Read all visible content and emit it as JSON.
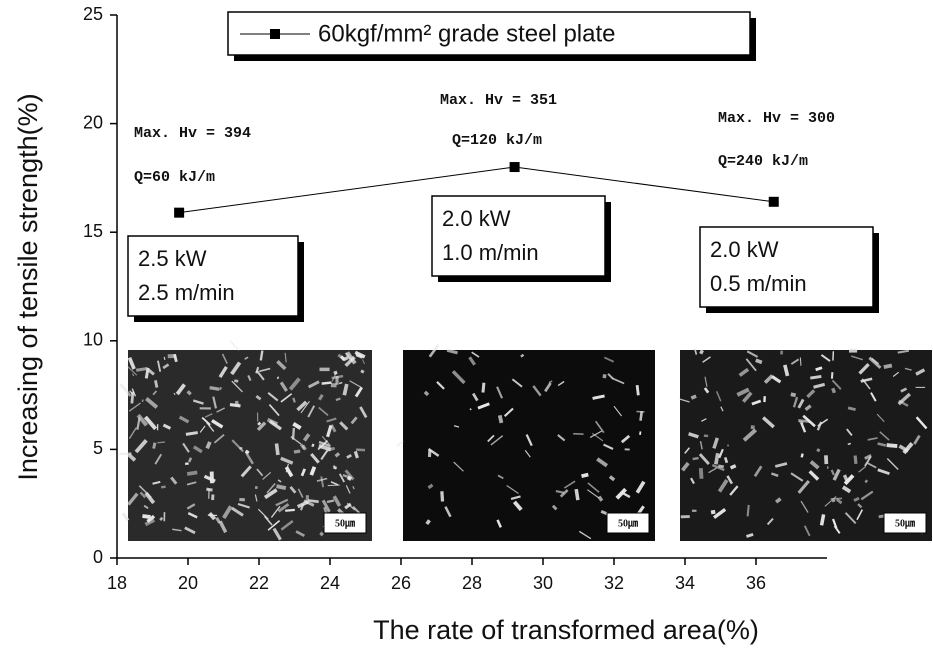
{
  "chart_data": {
    "type": "line",
    "xlabel": "The rate of transformed area(%)",
    "ylabel": "Increasing of tensile strength(%)",
    "x": [
      19.75,
      29.2,
      36.5
    ],
    "series": [
      {
        "name": "60kgf/mm² grade steel plate",
        "color": "#000000",
        "values": [
          15.9,
          18.0,
          16.4
        ]
      }
    ],
    "xlim": [
      18,
      38
    ],
    "xticks": [
      18,
      20,
      22,
      24,
      26,
      28,
      30,
      32,
      34,
      36
    ],
    "ylim": [
      0,
      25
    ],
    "yticks": [
      0,
      5,
      10,
      15,
      20,
      25
    ],
    "grid": false,
    "annotations": {
      "hardness": [
        "Max. Hv = 394",
        "Max. Hv = 351",
        "Max. Hv = 300"
      ],
      "heat_input": [
        "Q=60 kJ/m",
        "Q=120 kJ/m",
        "Q=240 kJ/m"
      ],
      "conditions": [
        [
          "2.5 kW",
          "2.5 m/min"
        ],
        [
          "2.0 kW",
          "1.0 m/min"
        ],
        [
          "2.0 kW",
          "0.5 m/min"
        ]
      ],
      "scale_bars": [
        "50㎛",
        "50㎛",
        "50㎛"
      ]
    }
  }
}
